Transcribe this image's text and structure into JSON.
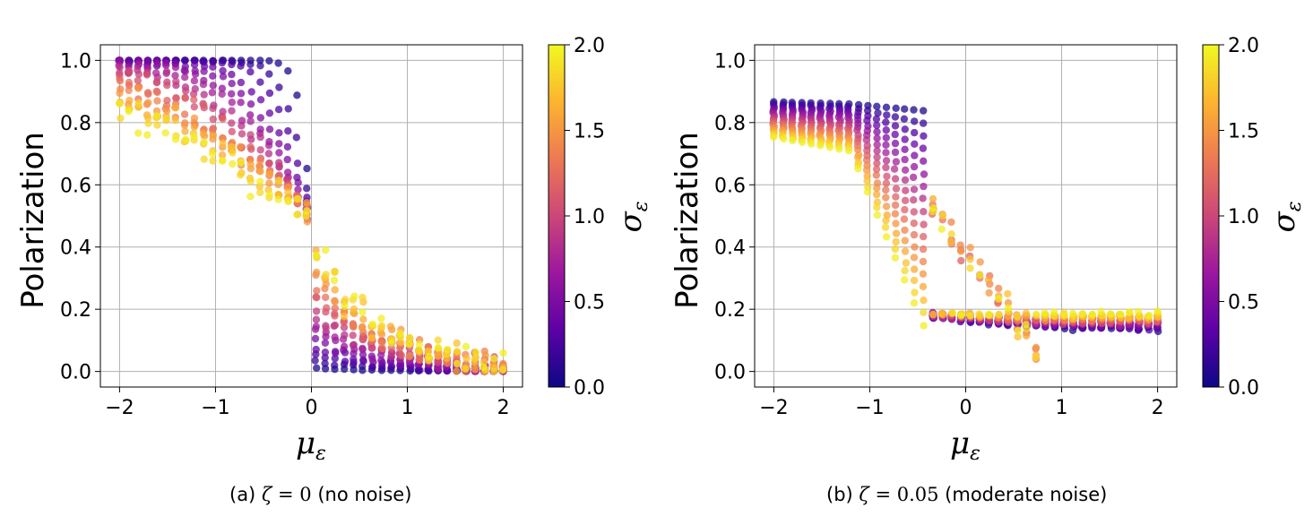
{
  "chart_data": [
    {
      "type": "scatter",
      "panel": "a",
      "ylabel": "Polarization",
      "xlabel": "μ",
      "xlabel_sub": "ε",
      "xlim": [
        -2.2,
        2.2
      ],
      "ylim": [
        -0.05,
        1.05
      ],
      "xticks": [
        -2,
        -1,
        0,
        1,
        2
      ],
      "xtick_labels": [
        "−2",
        "−1",
        "0",
        "1",
        "2"
      ],
      "yticks": [
        0.0,
        0.2,
        0.4,
        0.6,
        0.8,
        1.0
      ],
      "ytick_labels": [
        "0.0",
        "0.2",
        "0.4",
        "0.6",
        "0.8",
        "1.0"
      ],
      "grid": true,
      "noise_zeta": 0,
      "colorbar": {
        "label": "σ",
        "label_sub": "ε",
        "colormap": "plasma",
        "range": [
          0.0,
          2.0
        ],
        "ticks": [
          0.0,
          0.5,
          1.0,
          1.5,
          2.0
        ],
        "tick_labels": [
          "0.0",
          "0.5",
          "1.0",
          "1.5",
          "2.0"
        ]
      },
      "caption_prefix": "(a) ",
      "caption_math": "ζ = ",
      "caption_value": "0",
      "caption_suffix": " (no noise)"
    },
    {
      "type": "scatter",
      "panel": "b",
      "ylabel": "Polarization",
      "xlabel": "μ",
      "xlabel_sub": "ε",
      "xlim": [
        -2.2,
        2.2
      ],
      "ylim": [
        -0.05,
        1.05
      ],
      "xticks": [
        -2,
        -1,
        0,
        1,
        2
      ],
      "xtick_labels": [
        "−2",
        "−1",
        "0",
        "1",
        "2"
      ],
      "yticks": [
        0.0,
        0.2,
        0.4,
        0.6,
        0.8,
        1.0
      ],
      "ytick_labels": [
        "0.0",
        "0.2",
        "0.4",
        "0.6",
        "0.8",
        "1.0"
      ],
      "grid": true,
      "noise_zeta": 0.05,
      "colorbar": {
        "label": "σ",
        "label_sub": "ε",
        "colormap": "plasma",
        "range": [
          0.0,
          2.0
        ],
        "ticks": [
          0.0,
          0.5,
          1.0,
          1.5,
          2.0
        ],
        "tick_labels": [
          "0.0",
          "0.5",
          "1.0",
          "1.5",
          "2.0"
        ]
      },
      "caption_prefix": "(b) ",
      "caption_math": "ζ = ",
      "caption_value": "0.05",
      "caption_suffix": " (moderate noise)"
    }
  ],
  "plasma_stops": [
    "#0d0887",
    "#5c01a6",
    "#9c179e",
    "#cc4778",
    "#ed7953",
    "#fdb42f",
    "#f0f921"
  ]
}
